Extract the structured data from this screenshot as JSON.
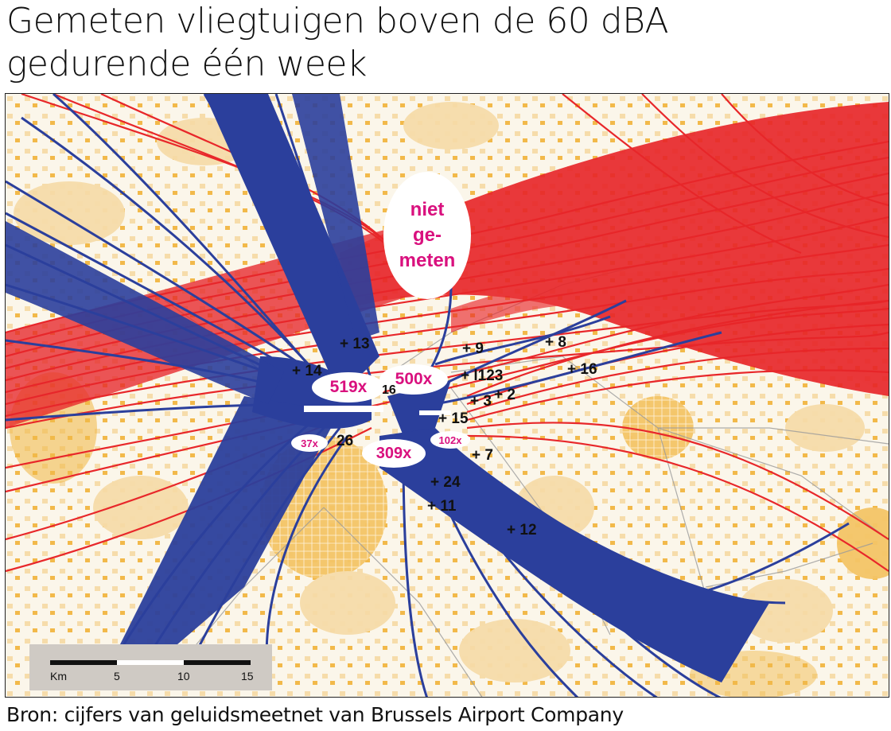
{
  "title": {
    "line1": "Gemeten vliegtuigen boven de 60 dBA",
    "line2": "gedurende één week"
  },
  "source": "Bron: cijfers van geluidsmeetnet van Brussels Airport Company",
  "not_measured_label": [
    "niet",
    "ge-",
    "meten"
  ],
  "counts": [
    {
      "label": "519x",
      "near": "runway west"
    },
    {
      "label": "500x",
      "near": "runway east"
    },
    {
      "label": "309x",
      "near": "runway south"
    },
    {
      "label": "37x",
      "near": "station 26"
    },
    {
      "label": "102x",
      "near": "station 15"
    }
  ],
  "stations": [
    "+ 13",
    "+ 14",
    "16",
    "26",
    "+ 9",
    "+ 8",
    "+ 16",
    "+ l123",
    "+ 3",
    "+ 2",
    "+ 15",
    "+ 7",
    "+ 24",
    "+ 11",
    "+ 12"
  ],
  "scalebar": {
    "unit": "Km",
    "ticks": [
      "5",
      "10",
      "15"
    ]
  },
  "colors": {
    "departures_red": "#e8272a",
    "departures_blue": "#2b3f9c",
    "urban_orange": "#f2b94a",
    "urban_light": "#f6dcaa",
    "background": "#fbf6ea",
    "count_text": "#d9107e"
  }
}
